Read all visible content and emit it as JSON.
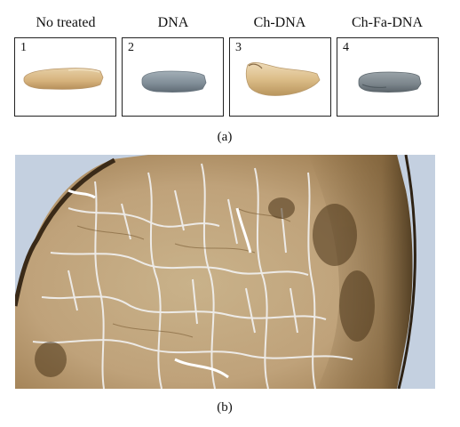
{
  "panel_a": {
    "columns": [
      {
        "label": "No treated",
        "number": "1"
      },
      {
        "label": "DNA",
        "number": "2"
      },
      {
        "label": "Ch-DNA",
        "number": "3"
      },
      {
        "label": "Ch-Fa-DNA",
        "number": "4"
      }
    ],
    "caption": "(a)"
  },
  "panel_b": {
    "caption": "(b)"
  },
  "colors": {
    "tissue_beige": "#d9b98a",
    "tissue_blue": "#7f8e9c",
    "micro_bg": "#c8d4e4",
    "micro_stain": "#8a6a3c"
  }
}
